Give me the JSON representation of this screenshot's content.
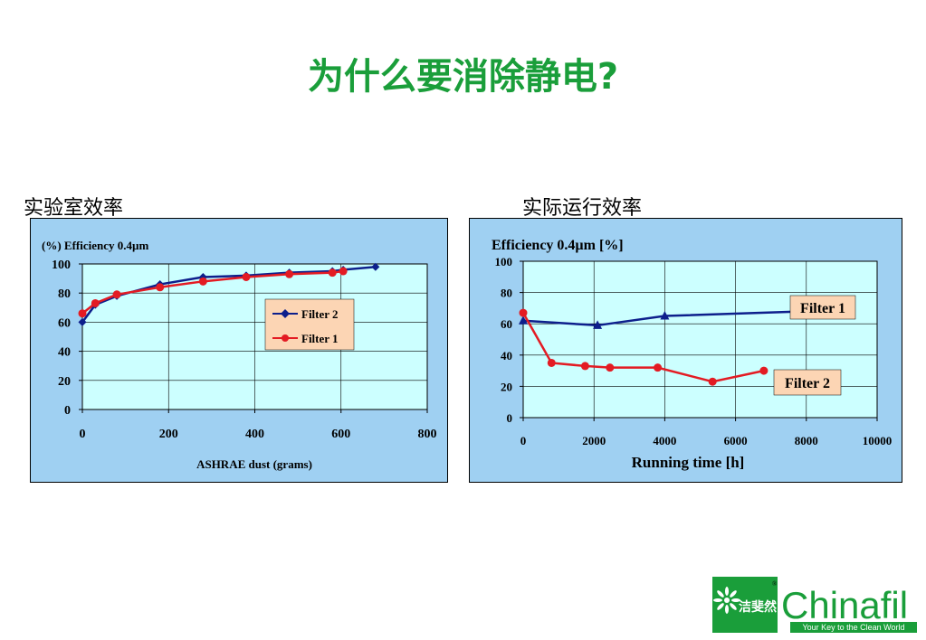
{
  "slide": {
    "title": "为什么要消除静电?",
    "caption_left": "实验室效率",
    "caption_right": "实际运行效率"
  },
  "colors": {
    "title_green": "#1a9e3a",
    "panel_bg": "#9fd0f2",
    "plot_bg": "#ccffff",
    "filter2_line": "#0d1f8c",
    "filter1_line": "#e31b23",
    "label_bg": "#fcd5b4"
  },
  "chart_data": [
    {
      "type": "line",
      "title": "(%) Efficiency 0.4µm",
      "xlabel": "ASHRAE dust (grams)",
      "ylabel": "",
      "xlim": [
        0,
        800
      ],
      "ylim": [
        0,
        100
      ],
      "x_ticks": [
        "0",
        "200",
        "400",
        "600",
        "800"
      ],
      "y_ticks": [
        "0",
        "20",
        "40",
        "60",
        "80",
        "100"
      ],
      "grid": true,
      "legend": "center-right",
      "series": [
        {
          "name": "Filter 2",
          "marker": "diamond",
          "color": "#0d1f8c",
          "x": [
            0,
            30,
            80,
            180,
            280,
            380,
            480,
            580,
            605,
            680
          ],
          "y": [
            60,
            72,
            78,
            86,
            91,
            92,
            94,
            95,
            96,
            98
          ]
        },
        {
          "name": "Filter 1",
          "marker": "circle",
          "color": "#e31b23",
          "x": [
            0,
            30,
            80,
            180,
            280,
            380,
            480,
            580,
            605
          ],
          "y": [
            66,
            73,
            79,
            84,
            88,
            91,
            93,
            94,
            95
          ]
        }
      ]
    },
    {
      "type": "line",
      "title": "Efficiency 0.4µm [%]",
      "xlabel": "Running time [h]",
      "ylabel": "",
      "xlim": [
        0,
        10000
      ],
      "ylim": [
        0,
        100
      ],
      "x_ticks": [
        "0",
        "2000",
        "4000",
        "6000",
        "8000",
        "10000"
      ],
      "y_ticks": [
        "0",
        "20",
        "40",
        "60",
        "80",
        "100"
      ],
      "grid": true,
      "legend": "labels on chart",
      "series": [
        {
          "name": "Filter 1",
          "marker": "triangle",
          "color": "#0d1f8c",
          "x": [
            0,
            2100,
            4000,
            8000
          ],
          "y": [
            62,
            59,
            65,
            68
          ]
        },
        {
          "name": "Filter 2",
          "marker": "circle",
          "color": "#e31b23",
          "x": [
            0,
            800,
            1750,
            2450,
            3800,
            5350,
            6800
          ],
          "y": [
            67,
            35,
            33,
            32,
            32,
            23,
            30
          ]
        }
      ]
    }
  ],
  "logo": {
    "cn_text": "洁斐然",
    "brand": "Chinafil",
    "tagline": "Your Key to the Clean World",
    "registered": "®"
  }
}
